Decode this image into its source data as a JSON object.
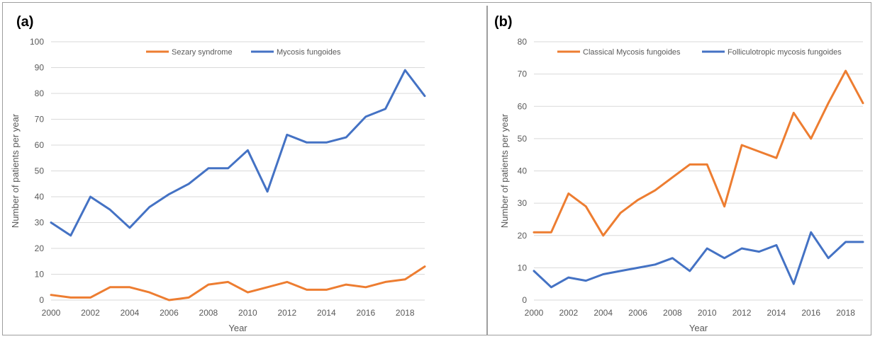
{
  "chart_data": [
    {
      "type": "line",
      "panel_label": "(a)",
      "xlabel": "Year",
      "ylabel": "Number of patients per year",
      "ylim": [
        0,
        100
      ],
      "yticks": [
        0,
        10,
        20,
        30,
        40,
        50,
        60,
        70,
        80,
        90,
        100
      ],
      "x": [
        2000,
        2001,
        2002,
        2003,
        2004,
        2005,
        2006,
        2007,
        2008,
        2009,
        2010,
        2011,
        2012,
        2013,
        2014,
        2015,
        2016,
        2017,
        2018,
        2019
      ],
      "xtick_labels": [
        "2000",
        "2002",
        "2004",
        "2006",
        "2008",
        "2010",
        "2012",
        "2014",
        "2016",
        "2018"
      ],
      "grid": true,
      "legend_position": "top-center",
      "series": [
        {
          "name": "Sezary syndrome",
          "color": "#ed7d31",
          "values": [
            2,
            1,
            1,
            5,
            5,
            3,
            0,
            1,
            6,
            7,
            3,
            5,
            7,
            4,
            4,
            6,
            5,
            7,
            8,
            13
          ]
        },
        {
          "name": "Mycosis fungoides",
          "color": "#4472c4",
          "values": [
            30,
            25,
            40,
            35,
            28,
            36,
            41,
            45,
            51,
            51,
            58,
            42,
            64,
            61,
            61,
            63,
            71,
            74,
            89,
            79
          ]
        }
      ]
    },
    {
      "type": "line",
      "panel_label": "(b)",
      "xlabel": "Year",
      "ylabel": "Number of patients per year",
      "ylim": [
        0,
        80
      ],
      "yticks": [
        0,
        10,
        20,
        30,
        40,
        50,
        60,
        70,
        80
      ],
      "x": [
        2000,
        2001,
        2002,
        2003,
        2004,
        2005,
        2006,
        2007,
        2008,
        2009,
        2010,
        2011,
        2012,
        2013,
        2014,
        2015,
        2016,
        2017,
        2018,
        2019
      ],
      "xtick_labels": [
        "2000",
        "2002",
        "2004",
        "2006",
        "2008",
        "2010",
        "2012",
        "2014",
        "2016",
        "2018"
      ],
      "grid": true,
      "legend_position": "top-center",
      "series": [
        {
          "name": "Classical Mycosis fungoides",
          "color": "#ed7d31",
          "values": [
            21,
            21,
            33,
            29,
            20,
            27,
            31,
            34,
            38,
            42,
            42,
            29,
            48,
            46,
            44,
            58,
            50,
            61,
            71,
            61
          ]
        },
        {
          "name": "Folliculotropic mycosis fungoides",
          "color": "#4472c4",
          "values": [
            9,
            4,
            7,
            6,
            8,
            9,
            10,
            11,
            13,
            9,
            16,
            13,
            16,
            15,
            17,
            5,
            21,
            13,
            18,
            18
          ]
        }
      ]
    }
  ]
}
